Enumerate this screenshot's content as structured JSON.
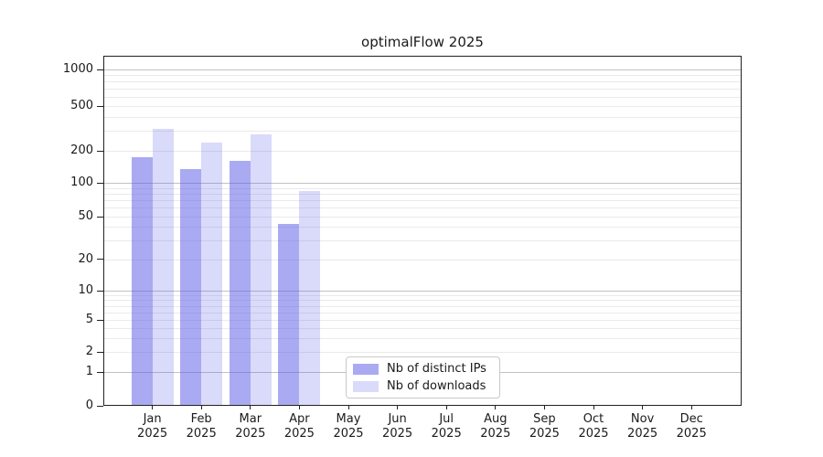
{
  "chart_data": {
    "type": "bar",
    "title": "optimalFlow 2025",
    "categories": [
      "Jan",
      "Feb",
      "Mar",
      "Apr",
      "May",
      "Jun",
      "Jul",
      "Aug",
      "Sep",
      "Oct",
      "Nov",
      "Dec"
    ],
    "x_tick_second_line": "2025",
    "series": [
      {
        "name": "Nb of distinct IPs",
        "fill": "rgba(85,85,230,0.50)",
        "solid_hex": "#aaaaf2",
        "values": [
          175,
          135,
          160,
          43,
          0,
          0,
          0,
          0,
          0,
          0,
          0,
          0
        ]
      },
      {
        "name": "Nb of downloads",
        "fill": "rgba(85,85,230,0.22)",
        "solid_hex": "#dbdbfa",
        "values": [
          315,
          235,
          280,
          85,
          0,
          0,
          0,
          0,
          0,
          0,
          0,
          0
        ]
      }
    ],
    "yscale": "log",
    "yticks": [
      1000,
      500,
      200,
      100,
      50,
      20,
      10,
      5,
      2,
      1,
      0
    ],
    "ytick_labels": [
      "1000",
      "500",
      "200",
      "100",
      "50",
      "20",
      "10",
      "5",
      "2",
      "1",
      "0"
    ],
    "ylim": [
      0,
      1250
    ],
    "xlabel": "",
    "ylabel": "",
    "grid": "horizontal",
    "legend_position": "lower-center"
  },
  "colors": {
    "bar_dark": "#aaaaf2",
    "bar_light": "#dbdbfa",
    "major_gridline": "#c2c2c2",
    "minor_gridline": "#eaeaea",
    "spine": "#222222",
    "text": "#1a1a1a",
    "legend_border": "#c9c9c9",
    "legend_bg": "#ffffff",
    "background": "#ffffff"
  }
}
